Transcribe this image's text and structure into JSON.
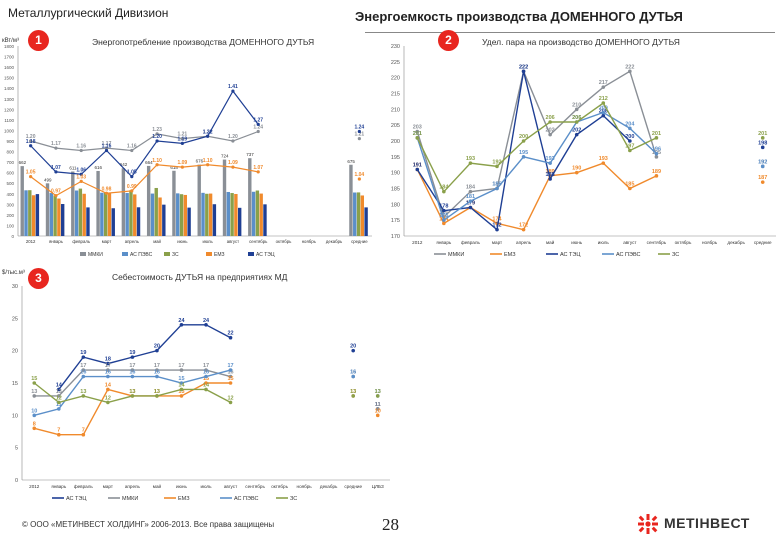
{
  "header": {
    "division": "Металлургический Дивизион",
    "title": "Энергоемкость производства ДОМЕННОГО ДУТЬЯ"
  },
  "badges": [
    "1",
    "2",
    "3"
  ],
  "footer": {
    "copyright": "© ООО «МЕТИНВЕСТ ХОЛДИНГ» 2006-2013. Все права защищены",
    "page": "28",
    "brand": "МЕТІНВЕСТ"
  },
  "colors": {
    "mmki": "#8a8f96",
    "aspves": "#5b8fc9",
    "zs": "#8aa04a",
    "emz": "#f08a2c",
    "astec": "#1f3f94",
    "accent": "#e8261f"
  },
  "chart_data": [
    {
      "id": "chart1",
      "type": "bar+line",
      "title": "Энергопотребление производства ДОМЕННОГО ДУТЬЯ",
      "ylabel": "кВт/м³",
      "categories": [
        "2012",
        "январь",
        "февраль",
        "март",
        "апрель",
        "май",
        "июнь",
        "июль",
        "август",
        "сентябрь",
        "октябрь",
        "ноябрь",
        "декабрь",
        "средние"
      ],
      "bar_ylim": [
        0,
        1800
      ],
      "bar_series": [
        {
          "name": "ММКИ",
          "key": "mmki",
          "values": [
            662,
            499,
            611,
            616,
            642,
            664,
            618,
            676,
            724,
            737,
            null,
            null,
            null,
            675
          ]
        },
        {
          "name": "АС ПЭВС",
          "key": "aspves",
          "values": [
            433,
            407,
            431,
            410,
            407,
            402,
            404,
            409,
            417,
            419,
            null,
            null,
            null,
            412
          ]
        },
        {
          "name": "ЗС",
          "key": "zs",
          "values": [
            434,
            385,
            449,
            415,
            433,
            455,
            396,
            400,
            407,
            431,
            null,
            null,
            null,
            413
          ]
        },
        {
          "name": "ЕМЗ",
          "key": "emz",
          "values": [
            386,
            355,
            400,
            406,
            394,
            365,
            389,
            402,
            398,
            402,
            null,
            null,
            null,
            384
          ]
        },
        {
          "name": "АС ТЭЦ",
          "key": "astec",
          "values": [
            397,
            303,
            271,
            263,
            272,
            297,
            269,
            301,
            267,
            300,
            null,
            null,
            null,
            271
          ]
        }
      ],
      "line_series": [
        {
          "name": "ММКИ",
          "key": "mmki",
          "values": [
            1.2,
            1.17,
            1.16,
            1.17,
            1.16,
            1.23,
            1.21,
            1.22,
            1.2,
            1.24,
            null,
            null,
            null,
            1.21
          ]
        },
        {
          "name": "АС ТЭЦ",
          "key": "astec",
          "values": [
            1.18,
            1.07,
            1.06,
            1.16,
            1.05,
            1.2,
            1.19,
            1.22,
            1.41,
            1.27,
            null,
            null,
            null,
            1.24
          ]
        },
        {
          "name": "ЕМЗ",
          "key": "emz",
          "values": [
            1.05,
            0.97,
            1.03,
            0.98,
            0.99,
            1.1,
            1.09,
            1.1,
            1.09,
            1.07,
            null,
            null,
            null,
            1.04
          ]
        }
      ],
      "line_ylim": [
        0.8,
        1.6
      ]
    },
    {
      "id": "chart2",
      "type": "line",
      "title": "Удел. пара на производство ДОМЕННОГО ДУТЬЯ",
      "ylabel": "Гкал/тыс.м³",
      "categories": [
        "2012",
        "январь",
        "февраль",
        "март",
        "апрель",
        "май",
        "июнь",
        "июль",
        "август",
        "сентябрь",
        "октябрь",
        "ноябрь",
        "декабрь",
        "средние"
      ],
      "ylim": [
        170,
        230
      ],
      "series": [
        {
          "name": "ММКИ",
          "key": "mmki",
          "values": [
            203,
            176,
            184,
            185,
            222,
            202,
            210,
            217,
            222,
            195,
            null,
            null,
            null,
            192
          ]
        },
        {
          "name": "ЕМЗ",
          "key": "emz",
          "values": [
            191,
            174,
            179,
            174,
            172,
            189,
            190,
            193,
            185,
            189,
            null,
            null,
            null,
            187
          ]
        },
        {
          "name": "АС ТЭЦ",
          "key": "astec",
          "values": [
            191,
            178,
            179,
            172,
            222,
            188,
            202,
            208,
            200,
            null,
            null,
            null,
            null,
            198
          ]
        },
        {
          "name": "АС ПЭВС",
          "key": "aspves",
          "values": [
            201,
            175,
            181,
            185,
            195,
            193,
            206,
            209,
            204,
            196,
            null,
            null,
            null,
            192
          ]
        },
        {
          "name": "ЗС",
          "key": "zs",
          "values": [
            201,
            184,
            193,
            192,
            200,
            206,
            206,
            212,
            197,
            201,
            null,
            null,
            null,
            201
          ]
        }
      ]
    },
    {
      "id": "chart3",
      "type": "line",
      "title": "Себестоимость ДУТЬЯ на предприятиях МД",
      "ylabel": "$/тыс.м³",
      "categories": [
        "2012",
        "январь",
        "февраль",
        "март",
        "апрель",
        "май",
        "июнь",
        "июль",
        "август",
        "сентябрь",
        "октябрь",
        "ноябрь",
        "декабрь",
        "средние",
        "ЦЛБЗ"
      ],
      "ylim": [
        0,
        30
      ],
      "yticks": [
        0,
        5,
        10,
        15,
        20,
        25,
        30
      ],
      "series": [
        {
          "name": "АС ТЭЦ",
          "key": "astec",
          "values": [
            null,
            14,
            19,
            18,
            19,
            20,
            24,
            24,
            22,
            null,
            null,
            null,
            null,
            20,
            11
          ]
        },
        {
          "name": "ММКИ",
          "key": "mmki",
          "values": [
            13,
            13,
            17,
            17,
            17,
            17,
            17,
            17,
            16,
            null,
            null,
            null,
            null,
            16,
            11
          ]
        },
        {
          "name": "ЕМЗ",
          "key": "emz",
          "values": [
            8,
            7,
            7,
            14,
            13,
            13,
            13,
            15,
            15,
            null,
            null,
            null,
            null,
            13,
            10
          ]
        },
        {
          "name": "АС ПЭВС",
          "key": "aspves",
          "values": [
            10,
            11,
            16,
            16,
            16,
            16,
            15,
            16,
            17,
            null,
            null,
            null,
            null,
            16,
            13
          ]
        },
        {
          "name": "ЗС",
          "key": "zs",
          "values": [
            15,
            12,
            13,
            12,
            13,
            13,
            14,
            14,
            12,
            null,
            null,
            null,
            null,
            13,
            13
          ]
        }
      ]
    }
  ]
}
